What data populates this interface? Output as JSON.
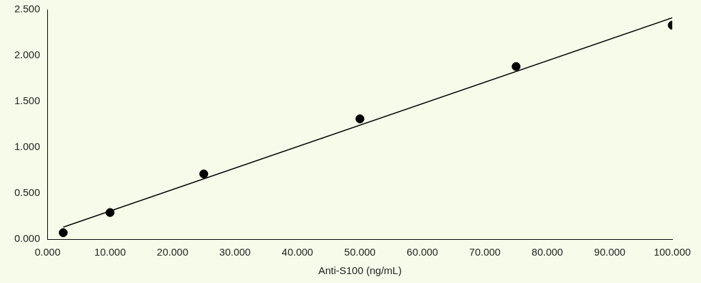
{
  "chart_data": {
    "type": "scatter",
    "x_label": "Anti-S100 (ng/mL)",
    "series": [
      {
        "type": "scatter",
        "x": [
          2.5,
          10,
          25,
          50,
          75,
          100
        ],
        "values": [
          0.07,
          0.29,
          0.71,
          1.31,
          1.88,
          2.33
        ],
        "color": "#000000",
        "marker": "circle"
      },
      {
        "type": "line",
        "x": [
          2.5,
          100
        ],
        "values": [
          0.13,
          2.41
        ],
        "color": "#000000",
        "line_style": "solid"
      }
    ],
    "xlim": [
      0,
      100
    ],
    "xticks": [
      {
        "value": 0,
        "label": "0.000"
      },
      {
        "value": 10,
        "label": "10.000"
      },
      {
        "value": 20,
        "label": "20.000"
      },
      {
        "value": 30,
        "label": "30.000"
      },
      {
        "value": 40,
        "label": "40.000"
      },
      {
        "value": 50,
        "label": "50.000"
      },
      {
        "value": 60,
        "label": "60.000"
      },
      {
        "value": 70,
        "label": "70.000"
      },
      {
        "value": 80,
        "label": "80.000"
      },
      {
        "value": 90,
        "label": "90.000"
      },
      {
        "value": 100,
        "label": "100.000"
      }
    ],
    "ylim": [
      0,
      2.5
    ],
    "yticks": [
      {
        "value": 0,
        "label": "0.000"
      },
      {
        "value": 0.5,
        "label": "0.500"
      },
      {
        "value": 1,
        "label": "1.000"
      },
      {
        "value": 1.5,
        "label": "1.500"
      },
      {
        "value": 2,
        "label": "2.000"
      },
      {
        "value": 2.5,
        "label": "2.500"
      }
    ],
    "grid": false
  }
}
